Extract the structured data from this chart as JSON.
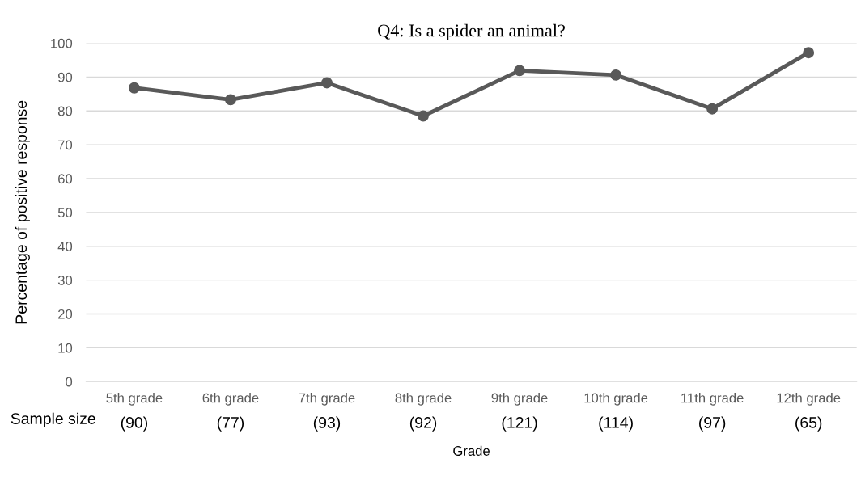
{
  "chart_data": {
    "type": "line",
    "title": "Q4: Is a spider an animal?",
    "xlabel": "Grade",
    "ylabel": "Percentage of positive response",
    "categories": [
      "5th grade",
      "6th grade",
      "7th grade",
      "8th grade",
      "9th grade",
      "10th grade",
      "11th grade",
      "12th grade"
    ],
    "series": [
      {
        "color": "#595959",
        "values": [
          86.8,
          83.3,
          88.3,
          78.5,
          91.9,
          90.6,
          80.6,
          97.2
        ]
      }
    ],
    "ylim": [
      0,
      100
    ],
    "yticks": [
      0,
      10,
      20,
      30,
      40,
      50,
      60,
      70,
      80,
      90,
      100
    ],
    "grid": "y",
    "marker": "circle",
    "line_style": "solid",
    "annotations": [
      "Sample size",
      "(90)",
      "(77)",
      "(93)",
      "(92)",
      "(121)",
      "(114)",
      "(97)",
      "(65)"
    ]
  }
}
